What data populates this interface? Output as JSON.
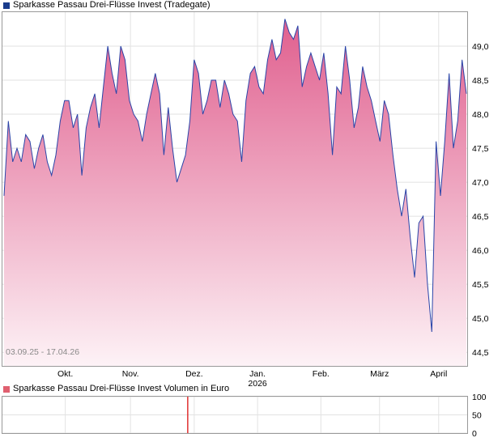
{
  "main_chart": {
    "legend_label": "Sparkasse Passau Drei-Flüsse Invest (Tradegate)",
    "legend_color": "#1a3c8c",
    "date_range": "03.09.25 - 17.04.26",
    "line_color": "#2a44a8",
    "fill_top_color": "#e05f8e",
    "fill_bottom_color": "#fdf2f6"
  },
  "volume_chart": {
    "legend_label": "Sparkasse Passau Drei-Flüsse Invest Volumen in Euro",
    "legend_color": "#e06070",
    "bar_color": "#e03030"
  },
  "chart_data": [
    {
      "type": "area",
      "series": [
        {
          "values": [
            46.8,
            47.9,
            47.3,
            47.5,
            47.3,
            47.7,
            47.6,
            47.2,
            47.5,
            47.7,
            47.3,
            47.1,
            47.4,
            47.9,
            48.2,
            48.2,
            47.8,
            48.0,
            47.1,
            47.8,
            48.1,
            48.3,
            47.8,
            48.4,
            49.0,
            48.6,
            48.3,
            49.0,
            48.8,
            48.2,
            48.0,
            47.9,
            47.6,
            48.0,
            48.3,
            48.6,
            48.3,
            47.4,
            48.1,
            47.5,
            47.0,
            47.2,
            47.4,
            47.9,
            48.8,
            48.6,
            48.0,
            48.2,
            48.5,
            48.5,
            48.1,
            48.5,
            48.3,
            48.0,
            47.9,
            47.3,
            48.2,
            48.6,
            48.7,
            48.4,
            48.3,
            48.8,
            49.1,
            48.8,
            48.9,
            49.4,
            49.2,
            49.1,
            49.3,
            48.4,
            48.7,
            48.9,
            48.7,
            48.5,
            48.9,
            48.3,
            47.4,
            48.4,
            48.3,
            49.0,
            48.5,
            47.8,
            48.1,
            48.7,
            48.4,
            48.2,
            47.9,
            47.6,
            48.2,
            48.0,
            47.4,
            46.9,
            46.5,
            46.9,
            46.2,
            45.6,
            46.4,
            46.5,
            45.5,
            44.8,
            47.6,
            46.8,
            47.6,
            48.6,
            47.5,
            47.9,
            48.8,
            48.3
          ],
          "color": "#2a44a8"
        }
      ],
      "x_tick_labels": [
        "Okt.",
        "Nov.",
        "Dez.",
        "Jan.",
        "Feb.",
        "März",
        "April"
      ],
      "x_tick_year": "2026",
      "y_tick_labels": [
        "44,5",
        "45,0",
        "45,5",
        "46,0",
        "46,5",
        "47,0",
        "47,5",
        "48,0",
        "48,5",
        "49,0"
      ],
      "y_ticks": [
        44.5,
        45.0,
        45.5,
        46.0,
        46.5,
        47.0,
        47.5,
        48.0,
        48.5,
        49.0
      ],
      "ylim": [
        44.3,
        49.5
      ],
      "grid": true
    },
    {
      "type": "bar",
      "y_tick_labels": [
        "0",
        "50",
        "100"
      ],
      "y_ticks": [
        0,
        50,
        100
      ],
      "ylim": [
        0,
        100
      ],
      "bars": [
        {
          "period": "Dez.",
          "value": 100
        }
      ],
      "grid": true
    }
  ]
}
